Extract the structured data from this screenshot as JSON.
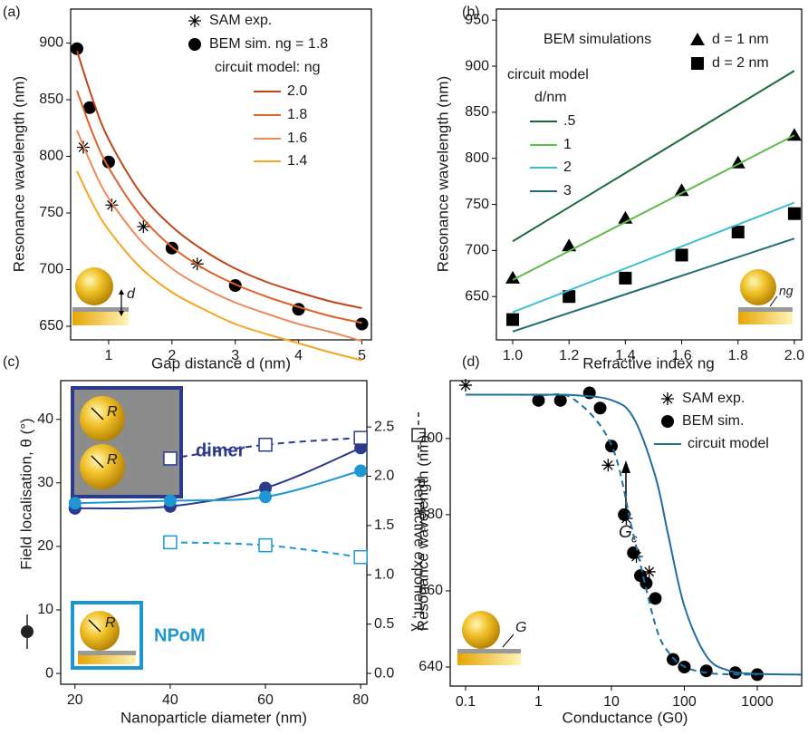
{
  "chart_data": [
    {
      "type": "scatter",
      "panel_label": "(a)",
      "x_label": "Gap distance d (nm)",
      "y_label": "Resonance wavelength (nm)",
      "xlim": [
        0.4,
        5.15
      ],
      "ylim": [
        638,
        930
      ],
      "xticks": [
        1,
        2,
        3,
        4,
        5
      ],
      "yticks": [
        650,
        700,
        750,
        800,
        850,
        900
      ],
      "legend_title": "circuit model: ng",
      "inset_label": "d",
      "series": [
        {
          "name": "SAM exp.",
          "color": "#000000",
          "marker": "asterisk",
          "line": "none",
          "x": [
            0.6,
            1.05,
            1.55,
            2.4
          ],
          "values": [
            808,
            757,
            738,
            705
          ]
        },
        {
          "name": "BEM sim. ng = 1.8",
          "color": "#000000",
          "marker": "circle",
          "line": "none",
          "x": [
            0.5,
            0.7,
            1,
            2,
            3,
            4,
            5
          ],
          "values": [
            895,
            843,
            795,
            719,
            686,
            665,
            652
          ]
        },
        {
          "name": "2.0",
          "color": "#c0461a",
          "marker": "none",
          "line": "solid",
          "x": [
            0.5,
            0.75,
            1,
            1.5,
            2,
            2.5,
            3,
            3.5,
            4,
            4.5,
            5
          ],
          "values": [
            893,
            850,
            815,
            768,
            738,
            717,
            701,
            689,
            680,
            672,
            666
          ]
        },
        {
          "name": "1.8",
          "color": "#e0622b",
          "marker": "none",
          "line": "solid",
          "x": [
            0.5,
            0.75,
            1,
            1.5,
            2,
            2.5,
            3,
            3.5,
            4,
            4.5,
            5
          ],
          "values": [
            858,
            820,
            790,
            748,
            720,
            701,
            687,
            676,
            667,
            659,
            653
          ]
        },
        {
          "name": "1.6",
          "color": "#ef8a56",
          "marker": "none",
          "line": "solid",
          "x": [
            0.5,
            0.75,
            1,
            1.5,
            2,
            2.5,
            3,
            3.5,
            4,
            4.5,
            5
          ],
          "values": [
            823,
            790,
            763,
            726,
            701,
            684,
            671,
            661,
            652,
            645,
            637
          ]
        },
        {
          "name": "1.4",
          "color": "#f5a623",
          "marker": "none",
          "line": "solid",
          "x": [
            0.5,
            0.75,
            1,
            1.5,
            2,
            2.5,
            3,
            3.5,
            4,
            4.5,
            5
          ],
          "values": [
            787,
            758,
            735,
            702,
            680,
            665,
            652,
            643,
            635,
            627,
            620
          ]
        }
      ]
    },
    {
      "type": "scatter",
      "panel_label": "(b)",
      "x_label": "Refractive index ng",
      "y_label": "Resonance wavelength (nm)",
      "xlim": [
        0.942,
        2.026
      ],
      "ylim": [
        603,
        962
      ],
      "xticks": [
        {
          "value": 1,
          "label": "1.0"
        },
        1.2,
        1.4,
        1.6,
        1.8,
        {
          "value": 2,
          "label": "2.0"
        }
      ],
      "yticks": [
        650,
        700,
        750,
        800,
        850,
        900,
        950
      ],
      "annotation": "BEM simulations",
      "legend_title": "circuit model",
      "legend_subtitle": "d/nm",
      "inset_label": "ng",
      "series": [
        {
          "name": "d = 1 nm",
          "color": "#000000",
          "marker": "triangle",
          "line": "none",
          "x": [
            1,
            1.2,
            1.4,
            1.6,
            1.8,
            2
          ],
          "values": [
            670,
            705,
            735,
            765,
            795,
            825
          ]
        },
        {
          "name": "d = 2 nm",
          "color": "#000000",
          "marker": "square",
          "line": "none",
          "x": [
            1,
            1.2,
            1.4,
            1.6,
            1.8,
            2
          ],
          "values": [
            625,
            650,
            670,
            695,
            720,
            740
          ]
        },
        {
          "name": ".5",
          "color": "#1a6b3a",
          "marker": "none",
          "line": "solid",
          "x": [
            1,
            2
          ],
          "values": [
            710,
            895
          ]
        },
        {
          "name": "1",
          "color": "#5dbb46",
          "marker": "none",
          "line": "solid",
          "x": [
            1,
            2
          ],
          "values": [
            668,
            825
          ]
        },
        {
          "name": "2",
          "color": "#3bbfcf",
          "marker": "none",
          "line": "solid",
          "x": [
            1,
            2
          ],
          "values": [
            633,
            752
          ]
        },
        {
          "name": "3",
          "color": "#1d6e78",
          "marker": "none",
          "line": "solid",
          "x": [
            1,
            2
          ],
          "values": [
            612,
            713
          ]
        }
      ]
    },
    {
      "type": "scatter",
      "panel_label": "(c)",
      "x_label": "Nanoparticle diameter (nm)",
      "y_label": "Field localisation, θ (°)",
      "y2_label": "Refractive exponent, χ",
      "xlim": [
        17,
        81.3
      ],
      "ylim": [
        -1.7,
        46.1
      ],
      "y2lim": [
        -0.11,
        2.97
      ],
      "xticks": [
        20,
        40,
        60,
        80
      ],
      "yticks": [
        0,
        10,
        20,
        30,
        40
      ],
      "y2ticks": [
        {
          "value": 0,
          "label": "0.0"
        },
        0.5,
        {
          "value": 1,
          "label": "1.0"
        },
        1.5,
        {
          "value": 2,
          "label": "2.0"
        },
        2.5
      ],
      "inset_labels": {
        "dimer": "dimer",
        "npom": "NPoM",
        "radius": "R"
      },
      "series": [
        {
          "color": "#2b3a8c",
          "marker": "circle",
          "line": "solid",
          "x": [
            20,
            40,
            60,
            80
          ],
          "values": [
            26,
            26.3,
            29.2,
            35.5
          ]
        },
        {
          "color": "#1e96d4",
          "marker": "circle",
          "line": "solid",
          "x": [
            20,
            40,
            60,
            80
          ],
          "values": [
            26.8,
            27.2,
            27.8,
            31.9
          ]
        },
        {
          "color": "#2b3a8c",
          "marker": "open-square",
          "line": "dashed",
          "axis": "y2",
          "x": [
            40,
            60,
            80
          ],
          "values": [
            2.18,
            2.32,
            2.39
          ]
        },
        {
          "color": "#1e96d4",
          "marker": "open-square",
          "line": "dashed",
          "axis": "y2",
          "x": [
            40,
            60,
            80
          ],
          "values": [
            1.33,
            1.3,
            1.18
          ]
        }
      ]
    },
    {
      "type": "scatter",
      "panel_label": "(d)",
      "x_label": "Conductance (G0)",
      "y_label": "Resonance wavelength (nm)",
      "xscale": "log",
      "xlim": [
        0.0615,
        4065
      ],
      "ylim": [
        635,
        715.2
      ],
      "xticks": [
        0.1,
        1,
        10,
        100,
        1000
      ],
      "yticks": [
        640,
        660,
        680,
        700
      ],
      "annotation": {
        "text": "G",
        "sub": "c"
      },
      "inset_label": "G",
      "series": [
        {
          "name": "SAM exp.",
          "color": "#000000",
          "marker": "asterisk",
          "line": "none",
          "x": [
            0.1,
            9,
            16,
            22,
            33
          ],
          "values": [
            714,
            693,
            679,
            669,
            665
          ]
        },
        {
          "name": "BEM sim.",
          "color": "#000000",
          "marker": "circle",
          "line": "none",
          "x": [
            1,
            2,
            5,
            7,
            10,
            15,
            20,
            25,
            30,
            40,
            70,
            100,
            200,
            500,
            1000
          ],
          "values": [
            710,
            710,
            712,
            708,
            698,
            680,
            670,
            664,
            662,
            658,
            642,
            640,
            639,
            638.5,
            638
          ]
        },
        {
          "name": "circuit model",
          "color": "#1f6f9f",
          "marker": "none",
          "line": "solid",
          "x": [
            0.1,
            1,
            3,
            10,
            20,
            40,
            60,
            100,
            200,
            400,
            1000,
            4000
          ],
          "values": [
            711.5,
            711.5,
            711.4,
            710.1,
            705.5,
            690.1,
            674.75,
            656,
            642.9,
            639.1,
            638.2,
            638
          ]
        },
        {
          "color": "#1f6f9f",
          "marker": "none",
          "line": "dashed",
          "x": [
            0.1,
            1,
            3,
            10,
            20,
            40,
            60,
            100,
            200,
            400,
            1000
          ],
          "values": [
            711.5,
            711.4,
            710.4,
            698.3,
            674.75,
            651.1,
            644,
            640.1,
            638.5,
            638.1,
            638
          ]
        }
      ]
    }
  ]
}
